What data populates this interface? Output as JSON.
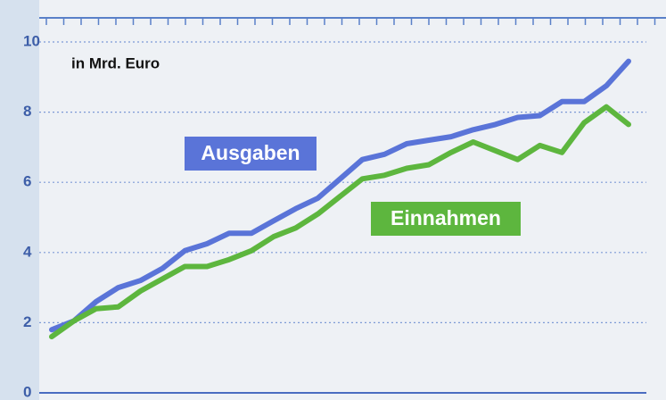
{
  "chart_data": {
    "type": "line",
    "subtitle": "in Mrd. Euro",
    "categories": [
      null,
      null,
      null,
      null,
      null,
      null,
      null,
      null,
      null,
      null,
      null,
      null,
      null,
      null,
      null,
      null,
      null,
      null,
      null,
      null,
      null,
      null,
      null,
      null,
      null,
      null,
      null
    ],
    "series": [
      {
        "name": "Ausgaben",
        "color": "#5a74d8",
        "values": [
          1.8,
          2.05,
          2.6,
          3.0,
          3.2,
          3.55,
          4.05,
          4.25,
          4.55,
          4.55,
          4.9,
          5.25,
          5.55,
          6.1,
          6.65,
          6.8,
          7.1,
          7.2,
          7.3,
          7.5,
          7.65,
          7.85,
          7.9,
          8.3,
          8.3,
          8.75,
          9.45
        ]
      },
      {
        "name": "Einnahmen",
        "color": "#5db63e",
        "values": [
          1.6,
          2.05,
          2.4,
          2.45,
          2.9,
          3.25,
          3.6,
          3.6,
          3.8,
          4.05,
          4.45,
          4.7,
          5.1,
          5.6,
          6.1,
          6.2,
          6.4,
          6.5,
          6.85,
          7.15,
          6.9,
          6.65,
          7.05,
          6.85,
          7.7,
          8.15,
          7.65
        ]
      }
    ],
    "ylim": [
      0,
      10
    ],
    "yticks": [
      0,
      2,
      4,
      6,
      8,
      10
    ],
    "grid": true
  }
}
